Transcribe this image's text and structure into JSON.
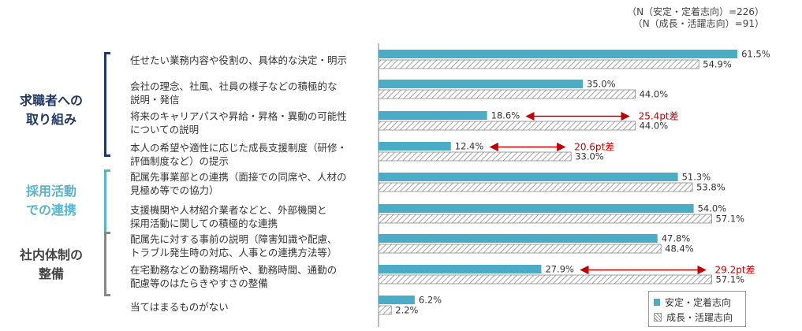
{
  "n_note": [
    "（N（安定・定着志向）=226）",
    "（N（成長・活躍志向）=91）"
  ],
  "groups": [
    {
      "label": "求職者への取り組み",
      "lines": [
        "求職者への",
        "取り組み"
      ],
      "color": "#1f3864"
    },
    {
      "label": "採用活動での連携",
      "lines": [
        "採用活動",
        "での連携"
      ],
      "color": "#5bb4cf"
    },
    {
      "label": "社内体制の整備",
      "lines": [
        "社内体制の",
        "整備"
      ],
      "color": "#555555"
    }
  ],
  "legend": {
    "series1": "安定・定着志向",
    "series2": "成長・活躍志向"
  },
  "chart_data": {
    "type": "bar",
    "orientation": "horizontal",
    "categories": [
      [
        "任せたい業務内容や役割の、具体的な決定・明示"
      ],
      [
        "会社の理念、社風、社員の様子などの積極的な",
        "説明・発信"
      ],
      [
        "将来のキャリアパスや昇給・昇格・異動の可能性",
        "についての説明"
      ],
      [
        "本人の希望や適性に応じた成長支援制度（研修・",
        "評価制度など）の提示"
      ],
      [
        "配属先事業部との連携（面接での同席や、人材の",
        "見極め等での協力）"
      ],
      [
        "支援機関や人材紹介業者などと、外部機関と",
        "採用活動に関しての積極的な連携"
      ],
      [
        "配属先に対する事前の説明（障害知識や配慮、",
        "トラブル発生時の対応、人事との連携方法等）"
      ],
      [
        "在宅勤務などの勤務場所や、勤務時間、通勤の",
        "配慮等のはたらきやすさの整備"
      ],
      [
        "当てはまるものがない"
      ]
    ],
    "series": [
      {
        "name": "安定・定着志向",
        "values": [
          61.5,
          35.0,
          18.6,
          12.4,
          51.3,
          54.0,
          47.8,
          27.9,
          6.2
        ],
        "color": "#4bacc6"
      },
      {
        "name": "成長・活躍志向",
        "values": [
          54.9,
          44.0,
          44.0,
          33.0,
          53.8,
          57.1,
          48.4,
          57.1,
          2.2
        ],
        "pattern": "diagonal-hatch"
      }
    ],
    "annotations": [
      {
        "category_index": 2,
        "text": "25.4pt差"
      },
      {
        "category_index": 3,
        "text": "20.6pt差"
      },
      {
        "category_index": 7,
        "text": "29.2pt差"
      }
    ],
    "value_format": "{v}%",
    "xlim": [
      0,
      65
    ],
    "grid": false,
    "legend_position": "bottom-right"
  }
}
